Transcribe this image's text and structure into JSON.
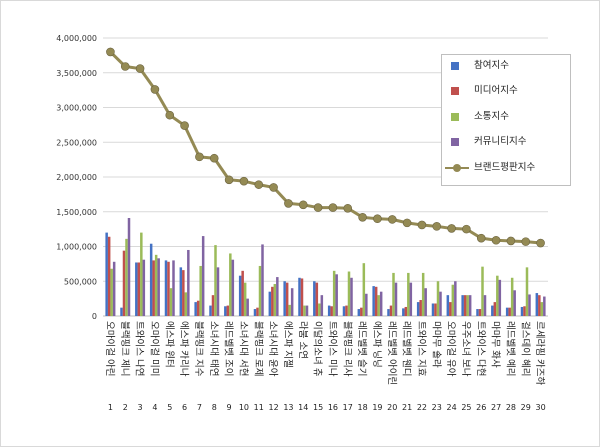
{
  "chart_data": {
    "type": "bar",
    "ylim": [
      0,
      4000000
    ],
    "ytick_labels": [
      "0",
      "500,000",
      "1,000,000",
      "1,500,000",
      "2,000,000",
      "2,500,000",
      "3,000,000",
      "3,500,000",
      "4,000,000"
    ],
    "categories": [
      "오마이걸 아린",
      "블랙핑크 제니",
      "트와이스 나연",
      "오마이걸 미미",
      "에스파 윈터",
      "에스파 카리나",
      "블랙핑크 지수",
      "소녀시대 태연",
      "레드벨벳 조이",
      "소녀시대 서현",
      "블랙핑크 로제",
      "소녀시대 윤아",
      "에스파 지젤",
      "라붐 소연",
      "이달의소녀 츄",
      "트와이스 미나",
      "블랙핑크 리사",
      "레드벨벳 슬기",
      "에스파 닝닝",
      "레드벨벳 아이린",
      "레드벨벳 웬디",
      "트와이스 지효",
      "마마무 솔라",
      "오마이걸 유아",
      "우주소녀 보나",
      "트와이스 다현",
      "마마무 화사",
      "레드벨벳 예리",
      "걸스데이 혜리",
      "르세라핌 카즈하"
    ],
    "indices": [
      "1",
      "2",
      "3",
      "4",
      "5",
      "6",
      "7",
      "8",
      "9",
      "10",
      "11",
      "12",
      "13",
      "14",
      "15",
      "16",
      "17",
      "18",
      "19",
      "20",
      "21",
      "22",
      "23",
      "24",
      "25",
      "26",
      "27",
      "28",
      "29",
      "30"
    ],
    "grid": true,
    "legend_position": "top-right",
    "series": [
      {
        "name": "참여지수",
        "kind": "bar",
        "color": "#4472C4",
        "values": [
          1200000,
          120000,
          770000,
          1040000,
          800000,
          700000,
          200000,
          150000,
          140000,
          580000,
          100000,
          350000,
          500000,
          550000,
          500000,
          150000,
          140000,
          100000,
          430000,
          100000,
          110000,
          200000,
          180000,
          300000,
          300000,
          100000,
          150000,
          120000,
          130000,
          330000
        ]
      },
      {
        "name": "미디어지수",
        "kind": "bar",
        "color": "#C0504D",
        "values": [
          1140000,
          940000,
          770000,
          800000,
          780000,
          660000,
          220000,
          300000,
          150000,
          650000,
          120000,
          420000,
          480000,
          540000,
          480000,
          140000,
          150000,
          120000,
          420000,
          150000,
          130000,
          230000,
          180000,
          200000,
          300000,
          100000,
          200000,
          120000,
          140000,
          300000
        ]
      },
      {
        "name": "소통지수",
        "kind": "bar",
        "color": "#9BBB59",
        "values": [
          680000,
          1110000,
          1200000,
          880000,
          400000,
          340000,
          720000,
          1020000,
          900000,
          480000,
          720000,
          460000,
          160000,
          150000,
          180000,
          650000,
          640000,
          760000,
          300000,
          620000,
          620000,
          620000,
          500000,
          450000,
          300000,
          710000,
          580000,
          550000,
          700000,
          200000
        ]
      },
      {
        "name": "커뮤니티지수",
        "kind": "bar",
        "color": "#8064A2",
        "values": [
          780000,
          1410000,
          810000,
          830000,
          800000,
          950000,
          1150000,
          700000,
          810000,
          250000,
          1030000,
          560000,
          400000,
          150000,
          300000,
          600000,
          550000,
          320000,
          350000,
          480000,
          480000,
          400000,
          350000,
          500000,
          300000,
          300000,
          520000,
          370000,
          310000,
          280000
        ]
      },
      {
        "name": "브랜드평판지수",
        "kind": "line",
        "color": "#948A54",
        "values": [
          3800000,
          3590000,
          3560000,
          3260000,
          2890000,
          2740000,
          2290000,
          2270000,
          1960000,
          1940000,
          1890000,
          1850000,
          1620000,
          1600000,
          1560000,
          1560000,
          1550000,
          1420000,
          1400000,
          1390000,
          1340000,
          1310000,
          1290000,
          1260000,
          1250000,
          1120000,
          1090000,
          1080000,
          1070000,
          1050000
        ]
      }
    ]
  }
}
